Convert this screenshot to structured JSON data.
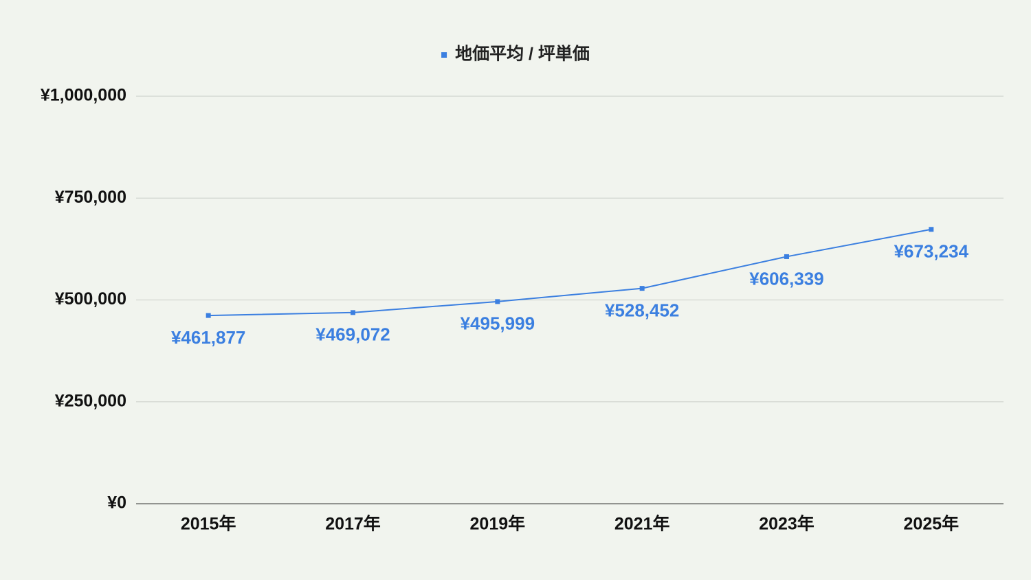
{
  "chart_data": {
    "type": "line",
    "categories": [
      "2015年",
      "2017年",
      "2019年",
      "2021年",
      "2023年",
      "2025年"
    ],
    "series": [
      {
        "name": "地価平均 / 坪単価",
        "color": "#3b7fe0",
        "values": [
          461877,
          469072,
          495999,
          528452,
          606339,
          673234
        ],
        "value_labels": [
          "¥461,877",
          "¥469,072",
          "¥495,999",
          "¥528,452",
          "¥606,339",
          "¥673,234"
        ]
      }
    ],
    "ylim": [
      0,
      1000000
    ],
    "yticks": [
      {
        "value": 0,
        "label": "¥0"
      },
      {
        "value": 250000,
        "label": "¥250,000"
      },
      {
        "value": 500000,
        "label": "¥500,000"
      },
      {
        "value": 750000,
        "label": "¥750,000"
      },
      {
        "value": 1000000,
        "label": "¥1,000,000"
      }
    ],
    "grid": true,
    "legend": "top"
  }
}
